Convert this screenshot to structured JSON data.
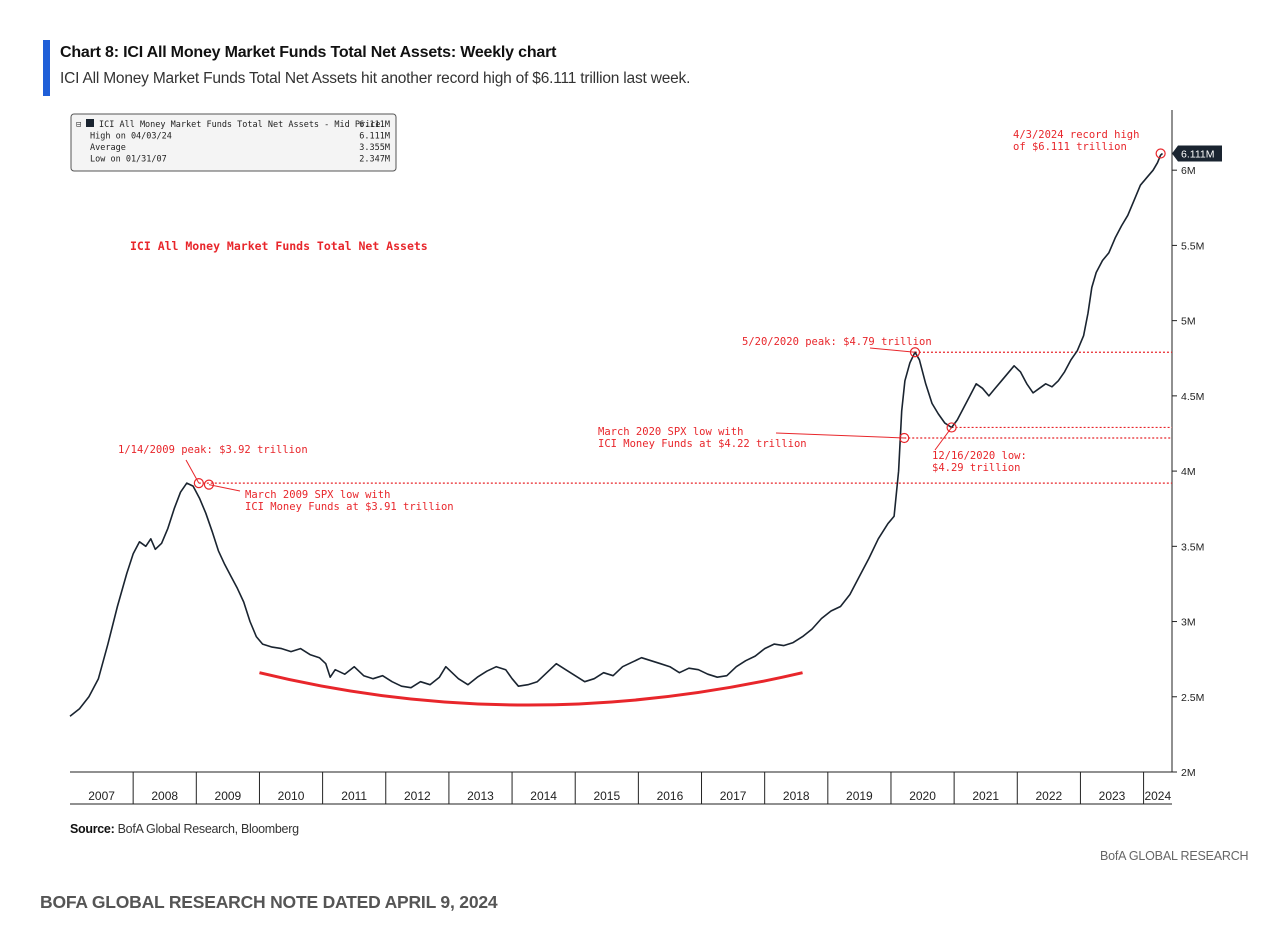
{
  "header": {
    "title": "Chart 8: ICI All Money Market Funds Total Net Assets: Weekly chart",
    "subtitle": "ICI All Money Market Funds Total Net Assets hit another record high of $6.111 trillion last week."
  },
  "source": {
    "label": "Source:",
    "text": "BofA Global Research, Bloomberg"
  },
  "branding": "BofA GLOBAL RESEARCH",
  "footer_note": "BOFA GLOBAL RESEARCH NOTE DATED APRIL 9, 2024",
  "colors": {
    "line": "#1a2430",
    "annotation": "#e8262b",
    "accent": "#1f5fd8"
  },
  "chart_data": {
    "type": "line",
    "title": "ICI All Money Market Funds Total Net Assets",
    "ylim": [
      2,
      6.4
    ],
    "y_ticks": [
      {
        "value": 2,
        "label": "2M"
      },
      {
        "value": 2.5,
        "label": "2.5M"
      },
      {
        "value": 3,
        "label": "3M"
      },
      {
        "value": 3.5,
        "label": "3.5M"
      },
      {
        "value": 4,
        "label": "4M"
      },
      {
        "value": 4.5,
        "label": "4.5M"
      },
      {
        "value": 5,
        "label": "5M"
      },
      {
        "value": 5.5,
        "label": "5.5M"
      },
      {
        "value": 6,
        "label": "6M"
      }
    ],
    "x_years": [
      "2007",
      "2008",
      "2009",
      "2010",
      "2011",
      "2012",
      "2013",
      "2014",
      "2015",
      "2016",
      "2017",
      "2018",
      "2019",
      "2020",
      "2021",
      "2022",
      "2023",
      "2024"
    ],
    "xlim": [
      2007.0,
      2024.45
    ],
    "last_value_label": "6.111M",
    "legend": {
      "rows": [
        {
          "label": "ICI All Money Market Funds Total Net Assets - Mid Price",
          "value": "6.111M"
        },
        {
          "label": "High on 04/03/24",
          "value": "6.111M"
        },
        {
          "label": "Average",
          "value": "3.355M"
        },
        {
          "label": "Low on 01/31/07",
          "value": "2.347M"
        }
      ]
    },
    "series": [
      {
        "points": [
          [
            2007.0,
            2.37
          ],
          [
            2007.15,
            2.42
          ],
          [
            2007.3,
            2.5
          ],
          [
            2007.45,
            2.62
          ],
          [
            2007.6,
            2.85
          ],
          [
            2007.75,
            3.1
          ],
          [
            2007.9,
            3.32
          ],
          [
            2008.0,
            3.45
          ],
          [
            2008.1,
            3.53
          ],
          [
            2008.2,
            3.5
          ],
          [
            2008.28,
            3.55
          ],
          [
            2008.35,
            3.48
          ],
          [
            2008.45,
            3.52
          ],
          [
            2008.55,
            3.62
          ],
          [
            2008.65,
            3.75
          ],
          [
            2008.75,
            3.86
          ],
          [
            2008.85,
            3.92
          ],
          [
            2008.95,
            3.9
          ],
          [
            2009.05,
            3.82
          ],
          [
            2009.15,
            3.72
          ],
          [
            2009.25,
            3.6
          ],
          [
            2009.35,
            3.47
          ],
          [
            2009.45,
            3.38
          ],
          [
            2009.55,
            3.3
          ],
          [
            2009.65,
            3.22
          ],
          [
            2009.75,
            3.13
          ],
          [
            2009.85,
            3.0
          ],
          [
            2009.95,
            2.9
          ],
          [
            2010.05,
            2.85
          ],
          [
            2010.2,
            2.83
          ],
          [
            2010.35,
            2.82
          ],
          [
            2010.5,
            2.8
          ],
          [
            2010.65,
            2.82
          ],
          [
            2010.8,
            2.78
          ],
          [
            2010.95,
            2.76
          ],
          [
            2011.05,
            2.72
          ],
          [
            2011.12,
            2.63
          ],
          [
            2011.2,
            2.68
          ],
          [
            2011.35,
            2.65
          ],
          [
            2011.5,
            2.7
          ],
          [
            2011.65,
            2.64
          ],
          [
            2011.8,
            2.62
          ],
          [
            2011.95,
            2.64
          ],
          [
            2012.1,
            2.6
          ],
          [
            2012.25,
            2.57
          ],
          [
            2012.4,
            2.56
          ],
          [
            2012.55,
            2.6
          ],
          [
            2012.7,
            2.58
          ],
          [
            2012.85,
            2.63
          ],
          [
            2012.95,
            2.7
          ],
          [
            2013.05,
            2.66
          ],
          [
            2013.15,
            2.62
          ],
          [
            2013.3,
            2.58
          ],
          [
            2013.45,
            2.63
          ],
          [
            2013.6,
            2.67
          ],
          [
            2013.75,
            2.7
          ],
          [
            2013.9,
            2.68
          ],
          [
            2014.0,
            2.62
          ],
          [
            2014.1,
            2.57
          ],
          [
            2014.25,
            2.58
          ],
          [
            2014.4,
            2.6
          ],
          [
            2014.55,
            2.66
          ],
          [
            2014.7,
            2.72
          ],
          [
            2014.85,
            2.68
          ],
          [
            2015.0,
            2.64
          ],
          [
            2015.15,
            2.6
          ],
          [
            2015.3,
            2.62
          ],
          [
            2015.45,
            2.66
          ],
          [
            2015.6,
            2.64
          ],
          [
            2015.75,
            2.7
          ],
          [
            2015.9,
            2.73
          ],
          [
            2016.05,
            2.76
          ],
          [
            2016.2,
            2.74
          ],
          [
            2016.35,
            2.72
          ],
          [
            2016.5,
            2.7
          ],
          [
            2016.65,
            2.66
          ],
          [
            2016.8,
            2.69
          ],
          [
            2016.95,
            2.68
          ],
          [
            2017.1,
            2.65
          ],
          [
            2017.25,
            2.63
          ],
          [
            2017.4,
            2.64
          ],
          [
            2017.55,
            2.7
          ],
          [
            2017.7,
            2.74
          ],
          [
            2017.85,
            2.77
          ],
          [
            2018.0,
            2.82
          ],
          [
            2018.15,
            2.85
          ],
          [
            2018.3,
            2.84
          ],
          [
            2018.45,
            2.86
          ],
          [
            2018.6,
            2.9
          ],
          [
            2018.75,
            2.95
          ],
          [
            2018.9,
            3.02
          ],
          [
            2019.05,
            3.07
          ],
          [
            2019.2,
            3.1
          ],
          [
            2019.35,
            3.18
          ],
          [
            2019.5,
            3.3
          ],
          [
            2019.65,
            3.42
          ],
          [
            2019.8,
            3.55
          ],
          [
            2019.95,
            3.65
          ],
          [
            2020.05,
            3.7
          ],
          [
            2020.12,
            4.0
          ],
          [
            2020.17,
            4.4
          ],
          [
            2020.22,
            4.6
          ],
          [
            2020.3,
            4.72
          ],
          [
            2020.38,
            4.79
          ],
          [
            2020.45,
            4.74
          ],
          [
            2020.55,
            4.58
          ],
          [
            2020.65,
            4.45
          ],
          [
            2020.75,
            4.38
          ],
          [
            2020.85,
            4.32
          ],
          [
            2020.96,
            4.29
          ],
          [
            2021.05,
            4.34
          ],
          [
            2021.15,
            4.42
          ],
          [
            2021.25,
            4.5
          ],
          [
            2021.35,
            4.58
          ],
          [
            2021.45,
            4.55
          ],
          [
            2021.55,
            4.5
          ],
          [
            2021.65,
            4.55
          ],
          [
            2021.75,
            4.6
          ],
          [
            2021.85,
            4.65
          ],
          [
            2021.95,
            4.7
          ],
          [
            2022.05,
            4.66
          ],
          [
            2022.15,
            4.58
          ],
          [
            2022.25,
            4.52
          ],
          [
            2022.35,
            4.55
          ],
          [
            2022.45,
            4.58
          ],
          [
            2022.55,
            4.56
          ],
          [
            2022.65,
            4.6
          ],
          [
            2022.75,
            4.66
          ],
          [
            2022.85,
            4.74
          ],
          [
            2022.95,
            4.8
          ],
          [
            2023.05,
            4.9
          ],
          [
            2023.12,
            5.05
          ],
          [
            2023.18,
            5.22
          ],
          [
            2023.25,
            5.32
          ],
          [
            2023.35,
            5.4
          ],
          [
            2023.45,
            5.45
          ],
          [
            2023.55,
            5.55
          ],
          [
            2023.65,
            5.63
          ],
          [
            2023.75,
            5.7
          ],
          [
            2023.85,
            5.8
          ],
          [
            2023.95,
            5.9
          ],
          [
            2024.05,
            5.95
          ],
          [
            2024.15,
            6.0
          ],
          [
            2024.22,
            6.05
          ],
          [
            2024.27,
            6.1
          ],
          [
            2024.3,
            6.111
          ]
        ]
      }
    ],
    "annotations": [
      {
        "id": "peak2009",
        "lines": [
          "1/14/2009 peak: $3.92 trillion"
        ],
        "x": 2009.04,
        "y": 3.92
      },
      {
        "id": "low2009",
        "lines": [
          "March 2009 SPX low with",
          "ICI Money Funds at $3.91 trillion"
        ],
        "x": 2009.2,
        "y": 3.91
      },
      {
        "id": "peak2020",
        "lines": [
          "5/20/2020 peak: $4.79 trillion"
        ],
        "x": 2020.38,
        "y": 4.79
      },
      {
        "id": "spx2020",
        "lines": [
          "March 2020 SPX low with",
          "ICI Money Funds at $4.22 trillion"
        ],
        "x": 2020.21,
        "y": 4.22
      },
      {
        "id": "low2020",
        "lines": [
          "12/16/2020 low:",
          "$4.29 trillion"
        ],
        "x": 2020.96,
        "y": 4.29
      },
      {
        "id": "record2024",
        "lines": [
          "4/3/2024 record high",
          "of $6.111 trillion"
        ],
        "x": 2024.27,
        "y": 6.111
      }
    ],
    "reference_levels": [
      3.92,
      4.79,
      4.29,
      4.22
    ]
  }
}
